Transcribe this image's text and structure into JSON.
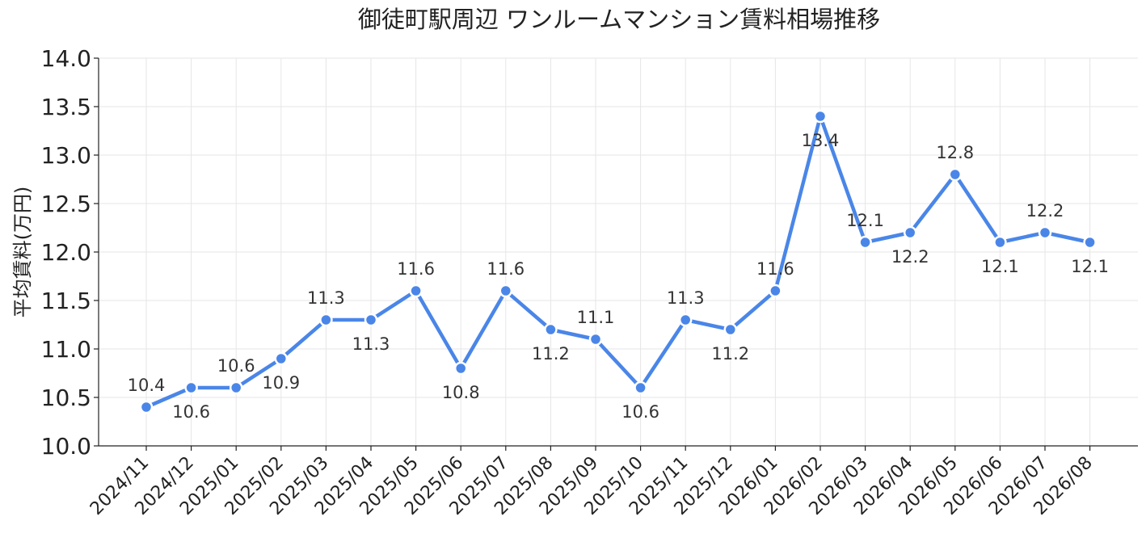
{
  "chart_data": {
    "type": "line",
    "title": "御徒町駅周辺 ワンルームマンション賃料相場推移",
    "xlabel": "",
    "ylabel": "平均賃料(万円)",
    "ylim": [
      10.0,
      14.0
    ],
    "yticks": [
      "10.0",
      "10.5",
      "11.0",
      "11.5",
      "12.0",
      "12.5",
      "13.0",
      "13.5",
      "14.0"
    ],
    "grid": true,
    "categories": [
      "2024/11",
      "2024/12",
      "2025/01",
      "2025/02",
      "2025/03",
      "2025/04",
      "2025/05",
      "2025/06",
      "2025/07",
      "2025/08",
      "2025/09",
      "2025/10",
      "2025/11",
      "2025/12",
      "2026/01",
      "2026/02",
      "2026/03",
      "2026/04",
      "2026/05",
      "2026/06",
      "2026/07",
      "2026/08"
    ],
    "series": [
      {
        "values": [
          10.4,
          10.6,
          10.6,
          10.9,
          11.3,
          11.3,
          11.6,
          10.8,
          11.6,
          11.2,
          11.1,
          10.6,
          11.3,
          11.2,
          11.6,
          13.4,
          12.1,
          12.2,
          12.8,
          12.1,
          12.2,
          12.1
        ],
        "labels": [
          "10.4",
          "10.6",
          "10.6",
          "10.9",
          "11.3",
          "11.3",
          "11.6",
          "10.8",
          "11.6",
          "11.2",
          "11.1",
          "10.6",
          "11.3",
          "11.2",
          "11.6",
          "13.4",
          "12.1",
          "12.2",
          "12.8",
          "12.1",
          "12.2",
          "12.1"
        ],
        "label_position": [
          "above",
          "below",
          "above",
          "below",
          "above",
          "below",
          "above",
          "below",
          "above",
          "below",
          "above",
          "below",
          "above",
          "below",
          "above",
          "below",
          "above",
          "below",
          "above",
          "below",
          "above",
          "below"
        ],
        "color": "#4a86e8"
      }
    ]
  }
}
